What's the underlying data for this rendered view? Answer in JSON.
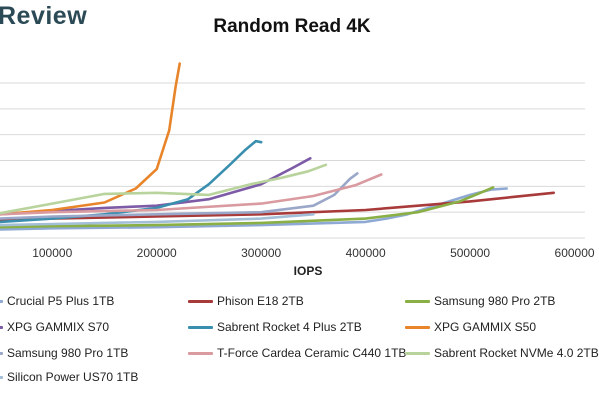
{
  "brand": {
    "text": "Review"
  },
  "chart_data": {
    "type": "line",
    "title": "Random Read 4K",
    "xlabel": "IOPS",
    "ylabel": "",
    "xlim": [
      50000,
      610000
    ],
    "ylim": [
      0,
      17
    ],
    "xticks": [
      "100000",
      "200000",
      "300000",
      "400000",
      "500000",
      "600000"
    ],
    "grid": "horizontal",
    "legend_position": "bottom",
    "series": [
      {
        "name": "Crucial P5 Plus 1TB",
        "color": "#8ea9d4",
        "x": [
          50000,
          100000,
          200000,
          300000,
          400000,
          420000,
          440000,
          460000,
          480000,
          500000,
          520000,
          535000
        ],
        "y": [
          0.8,
          0.9,
          1.0,
          1.2,
          1.5,
          1.8,
          2.2,
          2.8,
          3.4,
          4.0,
          4.5,
          4.6
        ]
      },
      {
        "name": "Phison E18 2TB",
        "color": "#a83a3a",
        "x": [
          50000,
          100000,
          200000,
          300000,
          400000,
          450000,
          500000,
          540000,
          580000
        ],
        "y": [
          1.6,
          1.8,
          2.0,
          2.2,
          2.6,
          3.0,
          3.4,
          3.8,
          4.2
        ]
      },
      {
        "name": "Samsung 980 Pro 2TB",
        "color": "#8ab045",
        "x": [
          50000,
          100000,
          200000,
          300000,
          400000,
          450000,
          490000,
          510000,
          522000
        ],
        "y": [
          1.0,
          1.1,
          1.2,
          1.4,
          1.8,
          2.4,
          3.4,
          4.2,
          4.7
        ]
      },
      {
        "name": "XPG GAMMIX S70",
        "color": "#7d5ba6",
        "x": [
          50000,
          100000,
          150000,
          200000,
          250000,
          300000,
          330000,
          347000
        ],
        "y": [
          2.2,
          2.5,
          2.8,
          3.0,
          3.6,
          5.0,
          6.5,
          7.4
        ]
      },
      {
        "name": "Sabrent Rocket 4 Plus 2TB",
        "color": "#3a8fae",
        "x": [
          50000,
          100000,
          150000,
          200000,
          230000,
          250000,
          270000,
          285000,
          295000,
          300000
        ],
        "y": [
          1.5,
          1.8,
          2.2,
          2.8,
          3.6,
          5.0,
          6.8,
          8.2,
          9.0,
          8.9
        ]
      },
      {
        "name": "XPG GAMMIX S50",
        "color": "#e8852b",
        "x": [
          50000,
          100000,
          150000,
          180000,
          200000,
          212000,
          218000,
          222000
        ],
        "y": [
          2.2,
          2.6,
          3.3,
          4.6,
          6.4,
          10.0,
          14.0,
          16.2
        ]
      },
      {
        "name": "Samsung 980 Pro 1TB",
        "color": "#9aa7c8",
        "x": [
          50000,
          100000,
          200000,
          300000,
          350000,
          370000,
          385000,
          392000
        ],
        "y": [
          1.8,
          2.0,
          2.2,
          2.4,
          3.0,
          4.0,
          5.5,
          6.0
        ]
      },
      {
        "name": "T-Force Cardea Ceramic C440 1TB",
        "color": "#d99aa0",
        "x": [
          50000,
          100000,
          200000,
          300000,
          350000,
          390000,
          415000
        ],
        "y": [
          2.2,
          2.4,
          2.6,
          3.2,
          3.9,
          4.9,
          5.9
        ]
      },
      {
        "name": "Sabrent Rocket NVMe 4.0 2TB",
        "color": "#b9d39c",
        "x": [
          50000,
          100000,
          150000,
          200000,
          250000,
          290000,
          320000,
          345000,
          362000
        ],
        "y": [
          2.3,
          3.2,
          4.1,
          4.2,
          4.0,
          5.0,
          5.6,
          6.2,
          6.8
        ]
      },
      {
        "name": "Silicon Power US70 1TB",
        "color": "#a3bfd8",
        "x": [
          50000,
          100000,
          200000,
          300000,
          350000
        ],
        "y": [
          1.2,
          1.3,
          1.5,
          1.8,
          2.2
        ]
      }
    ]
  }
}
